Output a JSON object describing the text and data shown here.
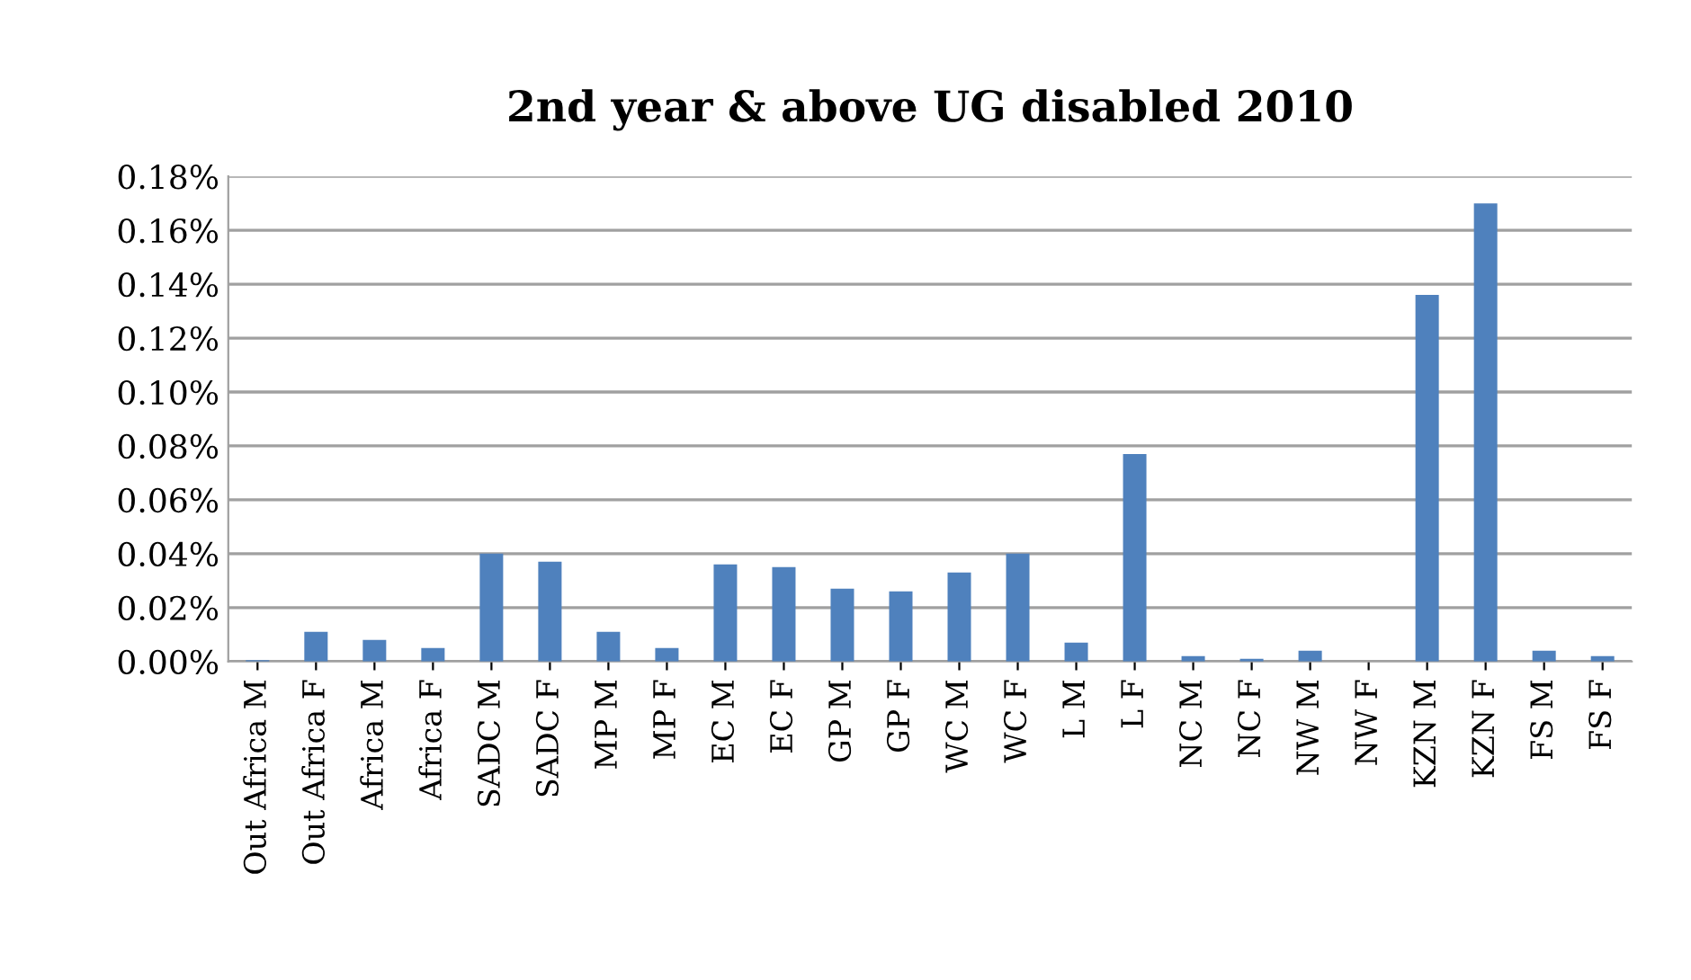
{
  "chart_data": {
    "type": "bar",
    "title": "2nd year & above UG disabled 2010",
    "categories": [
      "Out Africa M",
      "Out Africa F",
      "Africa M",
      "Africa F",
      "SADC M",
      "SADC F",
      "MP M",
      "MP F",
      "EC M",
      "EC F",
      "GP M",
      "GP F",
      "WC M",
      "WC F",
      "L M",
      "L F",
      "NC M",
      "NC F",
      "NW M",
      "NW F",
      "KZN M",
      "KZN F",
      "FS M",
      "FS F"
    ],
    "values": [
      0.0005,
      0.011,
      0.008,
      0.005,
      0.04,
      0.037,
      0.011,
      0.005,
      0.036,
      0.035,
      0.027,
      0.026,
      0.033,
      0.04,
      0.007,
      0.077,
      0.002,
      0.001,
      0.004,
      0,
      0.136,
      0.17,
      0.004,
      0.002
    ],
    "color": "#4f81bd",
    "ylim": [
      0,
      0.18
    ],
    "yticks": [
      {
        "value": 0,
        "label": "0.00%"
      },
      {
        "value": 0.02,
        "label": "0.02%"
      },
      {
        "value": 0.04,
        "label": "0.04%"
      },
      {
        "value": 0.06,
        "label": "0.06%"
      },
      {
        "value": 0.08,
        "label": "0.08%"
      },
      {
        "value": 0.1,
        "label": "0.10%"
      },
      {
        "value": 0.12,
        "label": "0.12%"
      },
      {
        "value": 0.14,
        "label": "0.14%"
      },
      {
        "value": 0.16,
        "label": "0.16%"
      },
      {
        "value": 0.18,
        "label": "0.18%"
      }
    ],
    "grid": "y"
  }
}
